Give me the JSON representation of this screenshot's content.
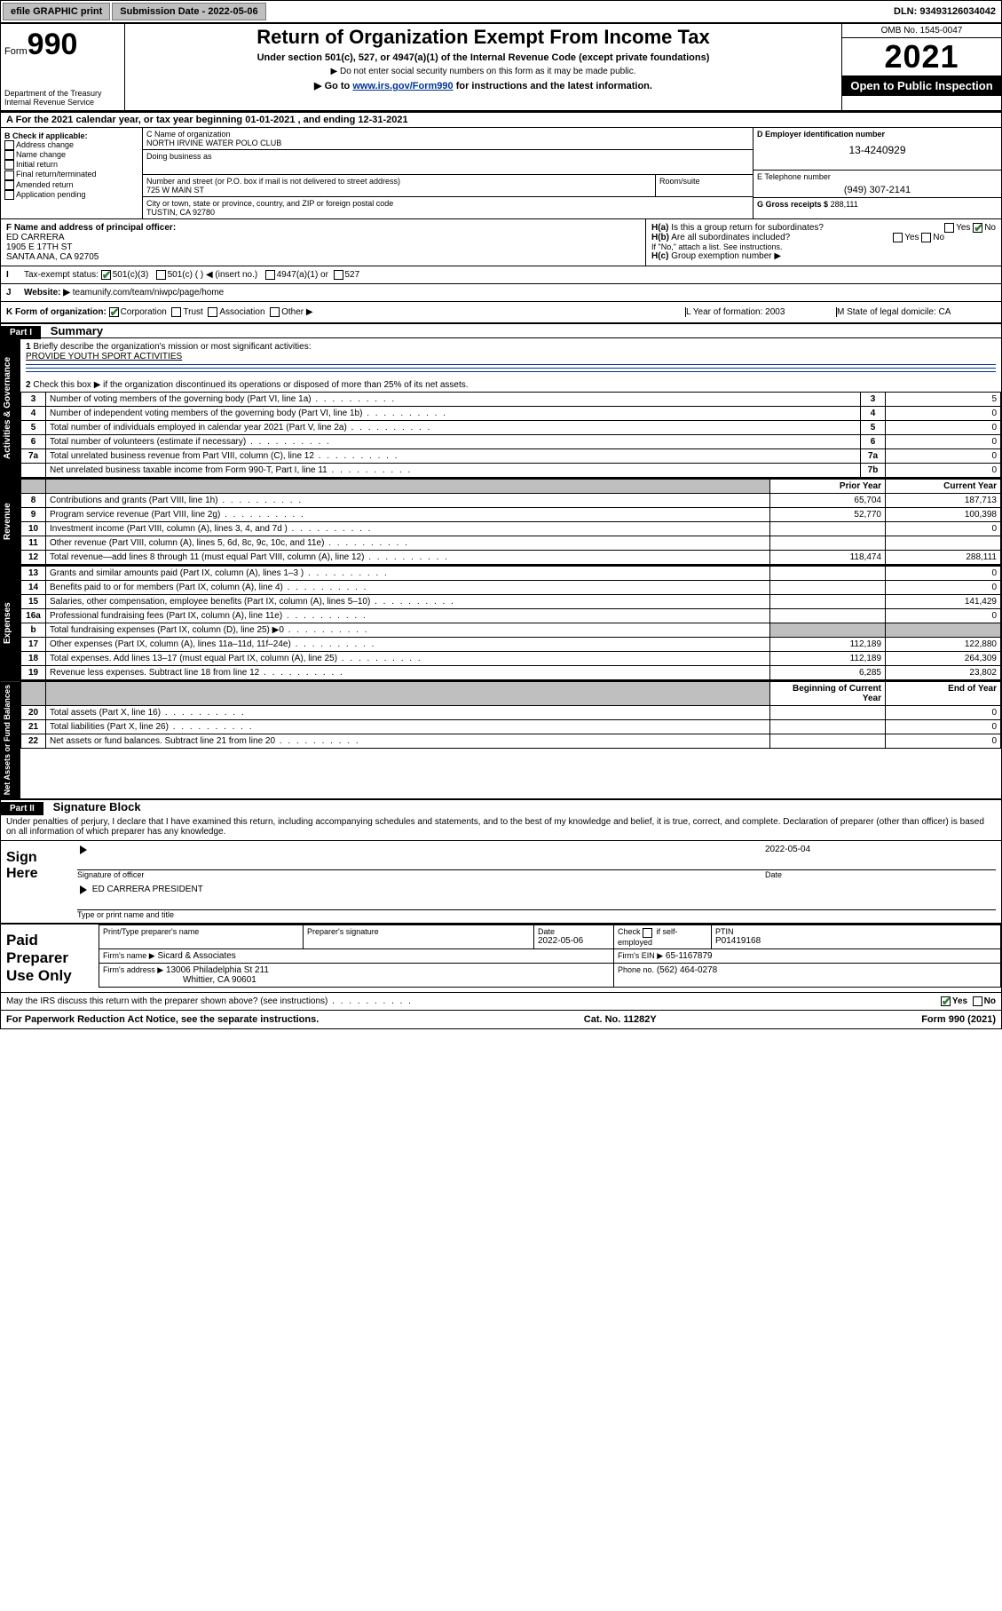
{
  "topbar": {
    "efile": "efile GRAPHIC print",
    "submission_label": "Submission Date - 2022-05-06",
    "dln": "DLN: 93493126034042"
  },
  "header": {
    "form_word": "Form",
    "form_no": "990",
    "dept1": "Department of the Treasury",
    "dept2": "Internal Revenue Service",
    "title": "Return of Organization Exempt From Income Tax",
    "sub1": "Under section 501(c), 527, or 4947(a)(1) of the Internal Revenue Code (except private foundations)",
    "sub2": "▶ Do not enter social security numbers on this form as it may be made public.",
    "sub3_pre": "▶ Go to ",
    "sub3_link": "www.irs.gov/Form990",
    "sub3_post": " for instructions and the latest information.",
    "omb": "OMB No. 1545-0047",
    "year": "2021",
    "opi": "Open to Public Inspection"
  },
  "A": {
    "line": "For the 2021 calendar year, or tax year beginning 01-01-2021   , and ending 12-31-2021"
  },
  "B": {
    "label": "B Check if applicable:",
    "opts": [
      "Address change",
      "Name change",
      "Initial return",
      "Final return/terminated",
      "Amended return",
      "Application pending"
    ]
  },
  "C": {
    "name_lab": "C Name of organization",
    "name": "NORTH IRVINE WATER POLO CLUB",
    "dba_lab": "Doing business as",
    "dba": "",
    "addr_lab": "Number and street (or P.O. box if mail is not delivered to street address)",
    "room_lab": "Room/suite",
    "addr": "725 W MAIN ST",
    "city_lab": "City or town, state or province, country, and ZIP or foreign postal code",
    "city": "TUSTIN, CA  92780"
  },
  "D": {
    "lab": "D Employer identification number",
    "val": "13-4240929"
  },
  "E": {
    "lab": "E Telephone number",
    "val": "(949) 307-2141"
  },
  "G": {
    "lab": "G Gross receipts $",
    "val": "288,111"
  },
  "F": {
    "lab": "F  Name and address of principal officer:",
    "name": "ED CARRERA",
    "addr1": "1905 E 17TH ST",
    "addr2": "SANTA ANA, CA  92705"
  },
  "H": {
    "a": "Is this a group return for subordinates?",
    "b": "Are all subordinates included?",
    "bnote": "If \"No,\" attach a list. See instructions.",
    "c": "Group exemption number ▶",
    "yes": "Yes",
    "no": "No"
  },
  "I": {
    "lab": "Tax-exempt status:",
    "o1": "501(c)(3)",
    "o2": "501(c) (  ) ◀ (insert no.)",
    "o3": "4947(a)(1) or",
    "o4": "527"
  },
  "J": {
    "lab": "Website: ▶",
    "val": "teamunify.com/team/niwpc/page/home"
  },
  "K": {
    "lab": "K Form of organization:",
    "opts": [
      "Corporation",
      "Trust",
      "Association",
      "Other ▶"
    ]
  },
  "L": {
    "lab": "L Year of formation: 2003"
  },
  "M": {
    "lab": "M State of legal domicile: CA"
  },
  "part1": {
    "band": "Part I",
    "title": "Summary",
    "q1": "Briefly describe the organization's mission or most significant activities:",
    "mission": "PROVIDE YOUTH SPORT ACTIVITIES",
    "q2": "Check this box ▶        if the organization discontinued its operations or disposed of more than 25% of its net assets.",
    "rows_a": [
      {
        "n": "3",
        "t": "Number of voting members of the governing body (Part VI, line 1a)",
        "box": "3",
        "v": "5"
      },
      {
        "n": "4",
        "t": "Number of independent voting members of the governing body (Part VI, line 1b)",
        "box": "4",
        "v": "0"
      },
      {
        "n": "5",
        "t": "Total number of individuals employed in calendar year 2021 (Part V, line 2a)",
        "box": "5",
        "v": "0"
      },
      {
        "n": "6",
        "t": "Total number of volunteers (estimate if necessary)",
        "box": "6",
        "v": "0"
      },
      {
        "n": "7a",
        "t": "Total unrelated business revenue from Part VIII, column (C), line 12",
        "box": "7a",
        "v": "0"
      },
      {
        "n": "",
        "t": "Net unrelated business taxable income from Form 990-T, Part I, line 11",
        "box": "7b",
        "v": "0"
      }
    ],
    "col_prior": "Prior Year",
    "col_curr": "Current Year",
    "rev": [
      {
        "n": "8",
        "t": "Contributions and grants (Part VIII, line 1h)",
        "p": "65,704",
        "c": "187,713"
      },
      {
        "n": "9",
        "t": "Program service revenue (Part VIII, line 2g)",
        "p": "52,770",
        "c": "100,398"
      },
      {
        "n": "10",
        "t": "Investment income (Part VIII, column (A), lines 3, 4, and 7d )",
        "p": "",
        "c": "0"
      },
      {
        "n": "11",
        "t": "Other revenue (Part VIII, column (A), lines 5, 6d, 8c, 9c, 10c, and 11e)",
        "p": "",
        "c": ""
      },
      {
        "n": "12",
        "t": "Total revenue—add lines 8 through 11 (must equal Part VIII, column (A), line 12)",
        "p": "118,474",
        "c": "288,111"
      }
    ],
    "exp": [
      {
        "n": "13",
        "t": "Grants and similar amounts paid (Part IX, column (A), lines 1–3 )",
        "p": "",
        "c": "0"
      },
      {
        "n": "14",
        "t": "Benefits paid to or for members (Part IX, column (A), line 4)",
        "p": "",
        "c": "0"
      },
      {
        "n": "15",
        "t": "Salaries, other compensation, employee benefits (Part IX, column (A), lines 5–10)",
        "p": "",
        "c": "141,429"
      },
      {
        "n": "16a",
        "t": "Professional fundraising fees (Part IX, column (A), line 11e)",
        "p": "",
        "c": "0"
      },
      {
        "n": "b",
        "t": "Total fundraising expenses (Part IX, column (D), line 25) ▶0",
        "p": "—shade—",
        "c": "—shade—"
      },
      {
        "n": "17",
        "t": "Other expenses (Part IX, column (A), lines 11a–11d, 11f–24e)",
        "p": "112,189",
        "c": "122,880"
      },
      {
        "n": "18",
        "t": "Total expenses. Add lines 13–17 (must equal Part IX, column (A), line 25)",
        "p": "112,189",
        "c": "264,309"
      },
      {
        "n": "19",
        "t": "Revenue less expenses. Subtract line 18 from line 12",
        "p": "6,285",
        "c": "23,802"
      }
    ],
    "col_boy": "Beginning of Current Year",
    "col_eoy": "End of Year",
    "na": [
      {
        "n": "20",
        "t": "Total assets (Part X, line 16)",
        "p": "",
        "c": "0"
      },
      {
        "n": "21",
        "t": "Total liabilities (Part X, line 26)",
        "p": "",
        "c": "0"
      },
      {
        "n": "22",
        "t": "Net assets or fund balances. Subtract line 21 from line 20",
        "p": "",
        "c": "0"
      }
    ],
    "side_ag": "Activities & Governance",
    "side_rev": "Revenue",
    "side_exp": "Expenses",
    "side_na": "Net Assets or Fund Balances"
  },
  "part2": {
    "band": "Part II",
    "title": "Signature Block",
    "decl": "Under penalties of perjury, I declare that I have examined this return, including accompanying schedules and statements, and to the best of my knowledge and belief, it is true, correct, and complete. Declaration of preparer (other than officer) is based on all information of which preparer has any knowledge.",
    "sign_here": "Sign Here",
    "sig_officer": "Signature of officer",
    "sig_date": "Date",
    "sig_date_val": "2022-05-04",
    "officer_name": "ED CARRERA PRESIDENT",
    "type_name": "Type or print name and title",
    "paid": "Paid Preparer Use Only",
    "p_name_lab": "Print/Type preparer's name",
    "p_sig_lab": "Preparer's signature",
    "p_date_lab": "Date",
    "p_date": "2022-05-06",
    "p_self": "Check        if self-employed",
    "ptin_lab": "PTIN",
    "ptin": "P01419168",
    "firm_name_lab": "Firm's name   ▶",
    "firm_name": "Sicard & Associates",
    "firm_ein_lab": "Firm's EIN ▶",
    "firm_ein": "65-1167879",
    "firm_addr_lab": "Firm's address ▶",
    "firm_addr1": "13006 Philadelphia St 211",
    "firm_addr2": "Whittier, CA  90601",
    "phone_lab": "Phone no.",
    "phone": "(562) 464-0278",
    "discuss": "May the IRS discuss this return with the preparer shown above? (see instructions)"
  },
  "footer": {
    "pra": "For Paperwork Reduction Act Notice, see the separate instructions.",
    "cat": "Cat. No. 11282Y",
    "form": "Form 990 (2021)"
  }
}
